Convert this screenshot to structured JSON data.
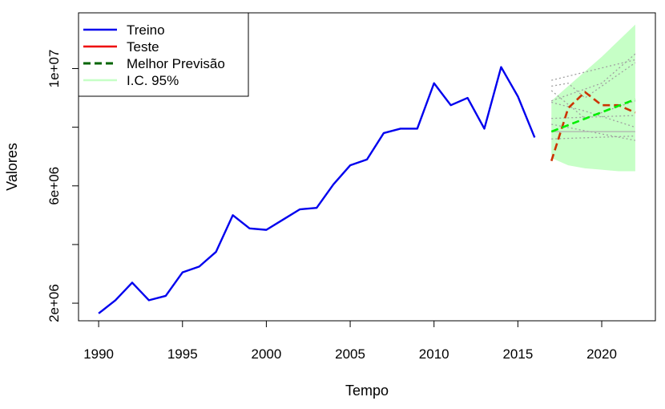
{
  "chart_data": {
    "type": "line",
    "title": "",
    "xlabel": "Tempo",
    "ylabel": "Valores",
    "xlim": [
      1988.8,
      2023.2
    ],
    "ylim": [
      1400000,
      11900000
    ],
    "x_ticks": [
      1990,
      1995,
      2000,
      2005,
      2010,
      2015,
      2020
    ],
    "x_tick_labels": [
      "1990",
      "1995",
      "2000",
      "2005",
      "2010",
      "2015",
      "2020"
    ],
    "y_ticks": [
      2000000,
      4000000,
      6000000,
      8000000,
      10000000
    ],
    "y_tick_labels": [
      "2e+06",
      "",
      "6e+06",
      "",
      "1e+07"
    ],
    "legend": {
      "position": "top-left",
      "entries": [
        {
          "label": "Treino",
          "color": "#0000ee",
          "style": "solid"
        },
        {
          "label": "Teste",
          "color": "#ee0000",
          "style": "solid"
        },
        {
          "label": "Melhor Previsão",
          "color": "#006400",
          "style": "dashed"
        },
        {
          "label": "I.C. 95%",
          "color": "#c6ffc6",
          "style": "solid"
        }
      ]
    },
    "series": [
      {
        "name": "Treino",
        "color": "#0000ee",
        "x": [
          1990,
          1991,
          1992,
          1993,
          1994,
          1995,
          1996,
          1997,
          1998,
          1999,
          2000,
          2001,
          2002,
          2003,
          2004,
          2005,
          2006,
          2007,
          2008,
          2009,
          2010,
          2011,
          2012,
          2013,
          2014,
          2015,
          2016
        ],
        "y": [
          1650000,
          2100000,
          2700000,
          2100000,
          2250000,
          3050000,
          3250000,
          3750000,
          5000000,
          4550000,
          4500000,
          4850000,
          5200000,
          5250000,
          6050000,
          6700000,
          6900000,
          7800000,
          7950000,
          7950000,
          9500000,
          8750000,
          9000000,
          7950000,
          10050000,
          9050000,
          7650000
        ]
      },
      {
        "name": "Teste",
        "color": "#cc3300",
        "style": "dashed",
        "x": [
          2017,
          2018,
          2019,
          2020,
          2021,
          2022
        ],
        "y": [
          6850000,
          8650000,
          9200000,
          8750000,
          8750000,
          8500000
        ]
      },
      {
        "name": "Melhor Previsão",
        "color": "#00ee00",
        "style": "dashed",
        "x": [
          2017,
          2022
        ],
        "y": [
          7850000,
          8950000
        ]
      },
      {
        "name": "I.C. 95%",
        "type": "band",
        "color": "#c6ffc6",
        "x": [
          2017,
          2018,
          2019,
          2020,
          2021,
          2022
        ],
        "upper": [
          8900000,
          9400000,
          9900000,
          10400000,
          10950000,
          11500000
        ],
        "lower": [
          6950000,
          6700000,
          6600000,
          6550000,
          6500000,
          6500000
        ]
      }
    ],
    "other_models": [
      {
        "x": [
          2017,
          2022
        ],
        "y": [
          9600000,
          10300000
        ],
        "style": "dotted",
        "color": "#a0a0a0"
      },
      {
        "x": [
          2017,
          2018,
          2019,
          2022
        ],
        "y": [
          9400000,
          9500000,
          9000000,
          10200000
        ],
        "style": "dotted",
        "color": "#a0a0a0"
      },
      {
        "x": [
          2017,
          2022
        ],
        "y": [
          8300000,
          8400000
        ],
        "style": "dotted",
        "color": "#a0a0a0"
      },
      {
        "x": [
          2017,
          2022
        ],
        "y": [
          8100000,
          7550000
        ],
        "style": "dotted",
        "color": "#a0a0a0"
      },
      {
        "x": [
          2017,
          2022
        ],
        "y": [
          7600000,
          7700000
        ],
        "style": "dotted",
        "color": "#a0a0a0"
      },
      {
        "x": [
          2017,
          2020,
          2022
        ],
        "y": [
          8900000,
          9500000,
          10500000
        ],
        "style": "dotted",
        "color": "#a0a0a0"
      },
      {
        "x": [
          2017,
          2019,
          2022
        ],
        "y": [
          8850000,
          8550000,
          8000000
        ],
        "style": "dotted",
        "color": "#a0a0a0"
      },
      {
        "x": [
          2017,
          2022
        ],
        "y": [
          7850000,
          7850000
        ],
        "style": "solid",
        "color": "#b0b0b0"
      },
      {
        "x": [
          2017,
          2019,
          2022
        ],
        "y": [
          9250000,
          8300000,
          8900000
        ],
        "style": "dotted",
        "color": "#a0a0a0"
      }
    ]
  }
}
